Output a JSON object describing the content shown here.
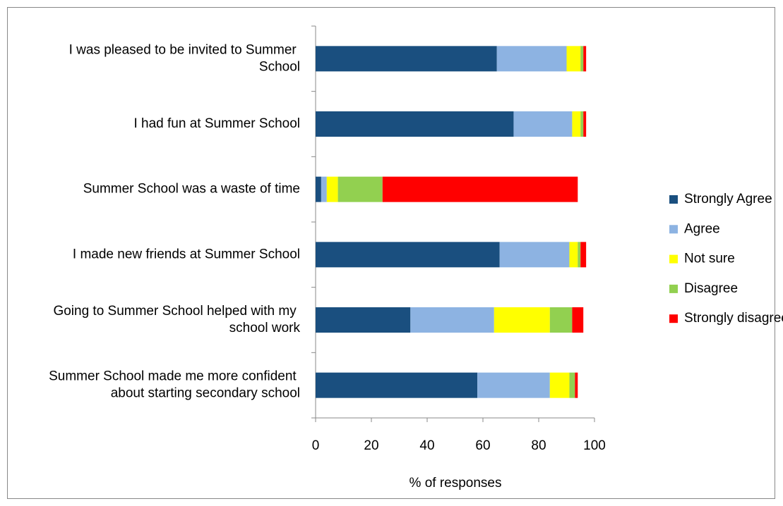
{
  "chart_data": {
    "type": "stacked_barh",
    "categories": [
      "I was pleased to be invited to Summer School",
      "I had fun at Summer School",
      "Summer School was a waste of time",
      "I made new friends at Summer School",
      "Going to Summer School helped with my school work",
      "Summer School made me more confident about starting secondary school"
    ],
    "series": [
      {
        "name": "Strongly Agree",
        "color": "#1a4f7f",
        "values": [
          65,
          71,
          2,
          66,
          34,
          58
        ]
      },
      {
        "name": "Agree",
        "color": "#8db3e2",
        "values": [
          25,
          21,
          2,
          25,
          30,
          26
        ]
      },
      {
        "name": "Not sure",
        "color": "#ffff00",
        "values": [
          5,
          3,
          4,
          3,
          20,
          7
        ]
      },
      {
        "name": "Disagree",
        "color": "#92d050",
        "values": [
          1,
          1,
          16,
          1,
          8,
          2
        ]
      },
      {
        "name": "Strongly disagree",
        "color": "#ff0000",
        "values": [
          1,
          1,
          70,
          2,
          4,
          1
        ]
      }
    ],
    "xlabel": "% of responses",
    "xlim": [
      0,
      100
    ],
    "xticks": [
      0,
      20,
      40,
      60,
      80,
      100
    ],
    "legend": "right"
  }
}
